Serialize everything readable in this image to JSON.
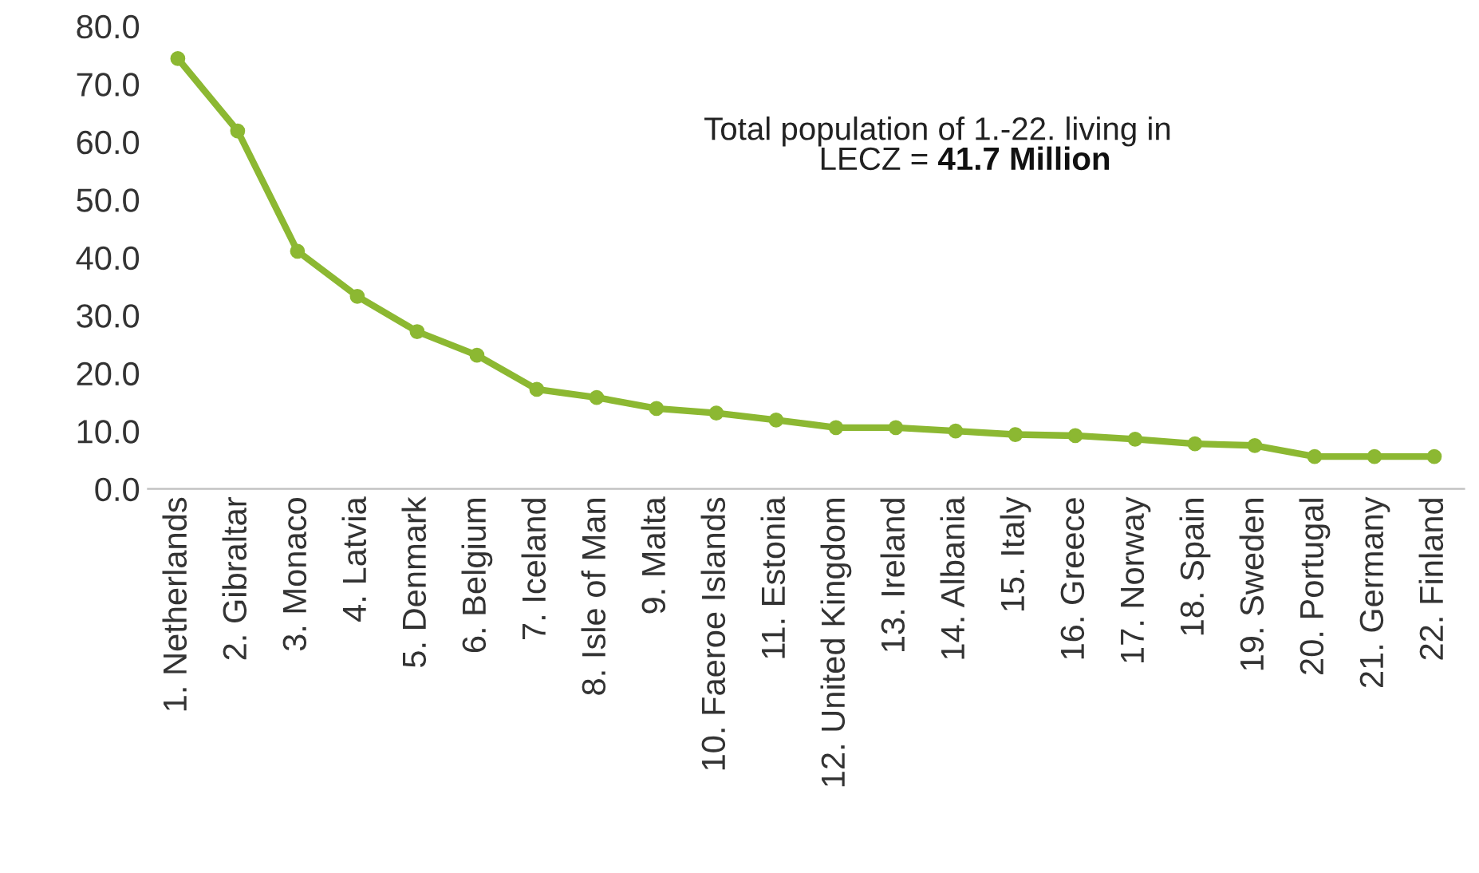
{
  "chart_data": {
    "type": "line",
    "categories": [
      "1. Netherlands",
      "2. Gibraltar",
      "3. Monaco",
      "4. Latvia",
      "5. Denmark",
      "6. Belgium",
      "7. Iceland",
      "8. Isle of Man",
      "9. Malta",
      "10. Faeroe Islands",
      "11. Estonia",
      "12. United Kingdom",
      "13. Ireland",
      "14. Albania",
      "15. Italy",
      "16. Greece",
      "17. Norway",
      "18. Spain",
      "19. Sweden",
      "20. Portugal",
      "21. Germany",
      "22. Finland"
    ],
    "series": [
      {
        "color": "#8cb832",
        "values": [
          74.4,
          61.9,
          41.1,
          33.3,
          27.2,
          23.1,
          17.2,
          15.8,
          13.9,
          13.1,
          11.9,
          10.6,
          10.6,
          10.0,
          9.4,
          9.2,
          8.6,
          7.8,
          7.5,
          5.6,
          5.6,
          5.6
        ]
      }
    ],
    "ylim": [
      0,
      80
    ],
    "yticks": [
      {
        "value": 0,
        "label": "0.0"
      },
      {
        "value": 10,
        "label": "10.0"
      },
      {
        "value": 20,
        "label": "20.0"
      },
      {
        "value": 30,
        "label": "30.0"
      },
      {
        "value": 40,
        "label": "40.0"
      },
      {
        "value": 50,
        "label": "50.0"
      },
      {
        "value": 60,
        "label": "60.0"
      },
      {
        "value": 70,
        "label": "70.0"
      },
      {
        "value": 80,
        "label": "80.0"
      }
    ],
    "annotations": [
      "Total population of 1.-22. living in",
      "LECZ = ",
      "41.7 Million"
    ],
    "marker": "circle",
    "line_style": "solid",
    "grid": false,
    "legend": false
  }
}
